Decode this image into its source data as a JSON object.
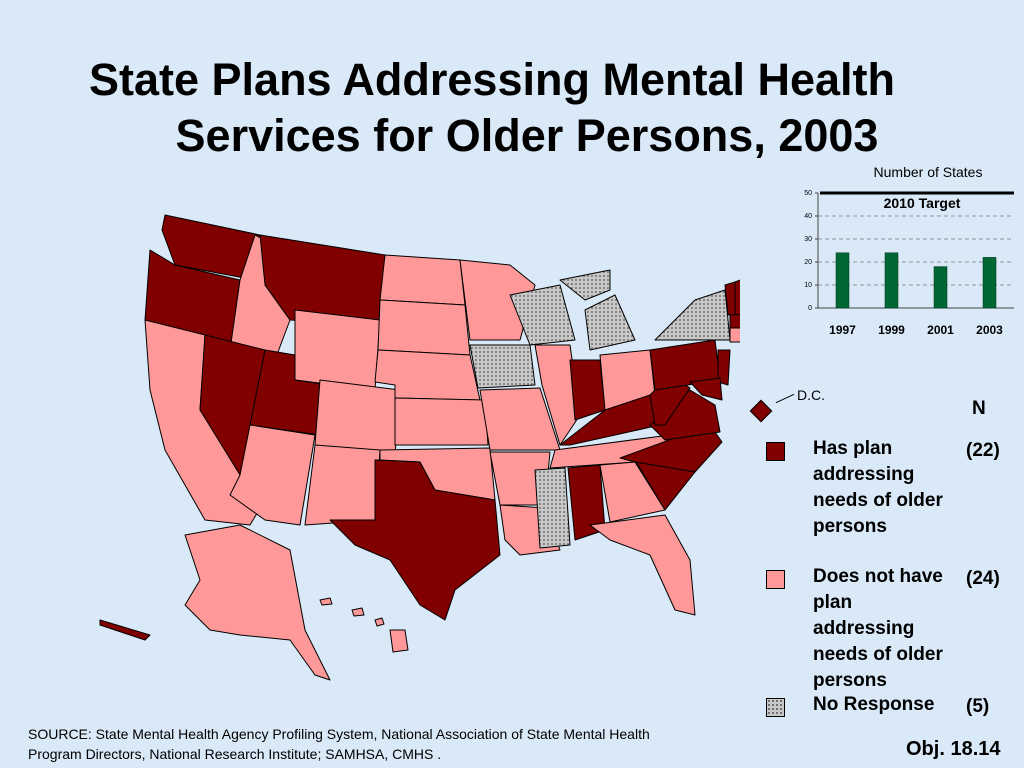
{
  "title_line1": "State Plans Addressing Mental Health",
  "title_line2": "Services for Older Persons, 2003",
  "colors": {
    "has_plan": "#800000",
    "no_plan": "#ff9999",
    "no_response": "#c0c0c0",
    "bar": "#006633",
    "background": "#d9e9f8"
  },
  "chart_data": {
    "type": "bar",
    "ylabel": "Number of States",
    "categories": [
      "1997",
      "1999",
      "2001",
      "2003"
    ],
    "values": [
      24,
      24,
      18,
      22
    ],
    "ylim": [
      0,
      50
    ],
    "yticks": [
      "0",
      "10",
      "20",
      "30",
      "40",
      "50"
    ],
    "target_label": "2010 Target",
    "target_value": 50,
    "grid": true
  },
  "map": {
    "dc_label": "D.C.",
    "n_header": "N",
    "legend": [
      {
        "label": "Has plan addressing needs of older persons",
        "n": "(22)"
      },
      {
        "label": "Does not have plan addressing needs of older persons",
        "n": "(24)"
      },
      {
        "label": "No Response",
        "n": "(5)"
      }
    ]
  },
  "source": "SOURCE: State Mental Health Agency Profiling System, National Association of State Mental Health Program Directors, National Research Institute; SAMHSA, CMHS .",
  "objective": "Obj. 18.14"
}
